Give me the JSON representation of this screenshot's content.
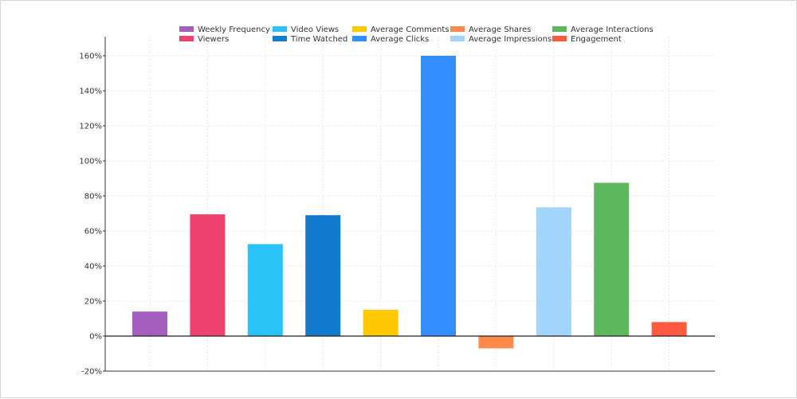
{
  "chart_data": {
    "type": "bar",
    "title": "",
    "xlabel": "",
    "ylabel": "",
    "ylim": [
      -20,
      170
    ],
    "yticks": [
      -20,
      0,
      20,
      40,
      60,
      80,
      100,
      120,
      140,
      160
    ],
    "ytick_suffix": "%",
    "grid": true,
    "legend": "top",
    "categories": [
      "Weekly Frequency",
      "Viewers",
      "Video Views",
      "Time Watched",
      "Average Comments",
      "Average Clicks",
      "Average Shares",
      "Average Impressions",
      "Average Interactions",
      "Engagement"
    ],
    "values": [
      14,
      69.5,
      52.5,
      69,
      15,
      160,
      -7,
      73.5,
      87.5,
      8
    ],
    "colors": [
      "#A45EBF",
      "#F0426F",
      "#2BC3F7",
      "#127BCF",
      "#FFC800",
      "#338FFF",
      "#FF8A4C",
      "#A3D4FB",
      "#5CB85C",
      "#FF5A40"
    ]
  }
}
